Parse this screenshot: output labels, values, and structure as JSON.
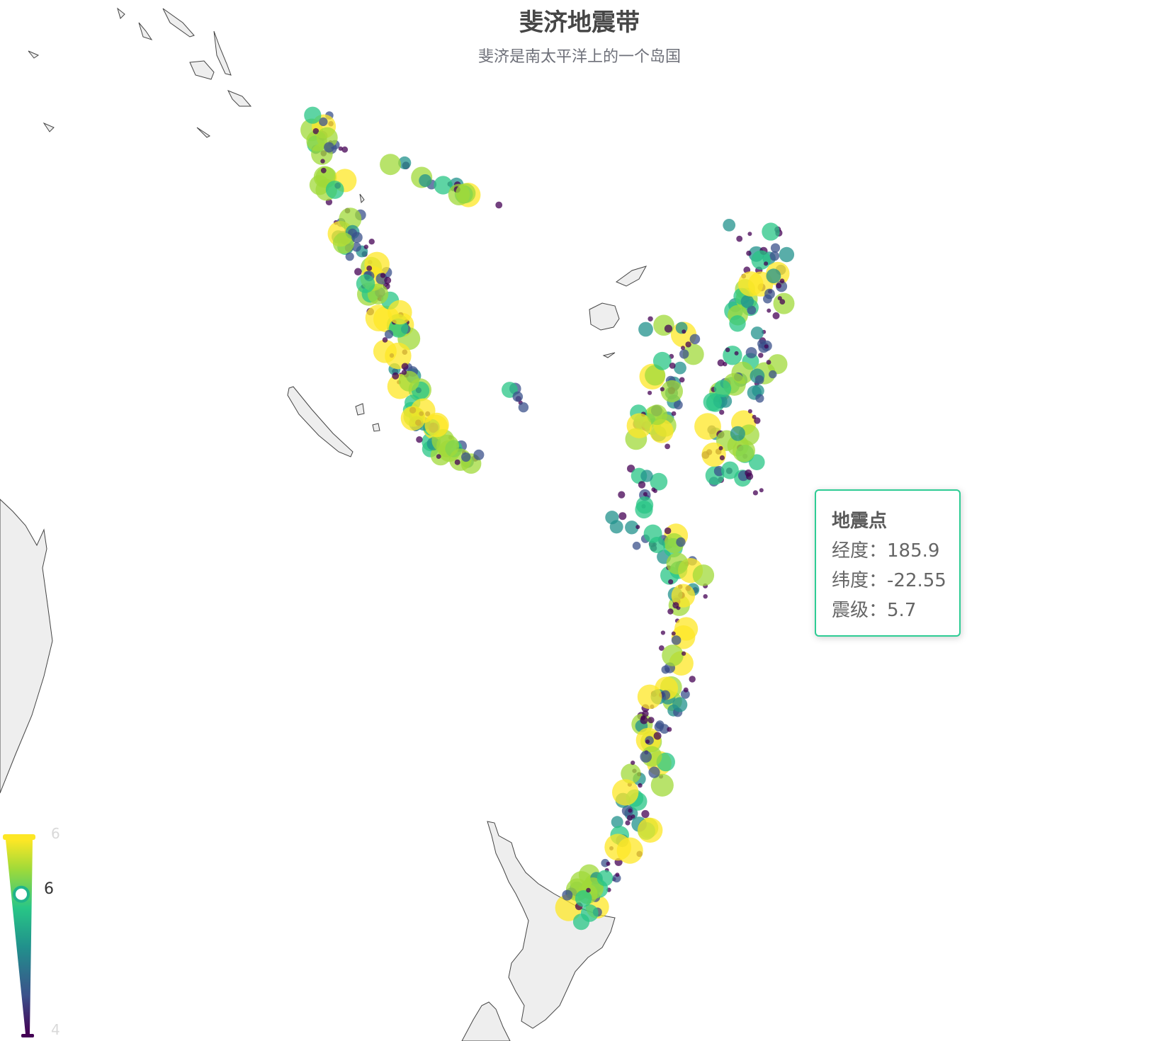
{
  "title": "斐济地震带",
  "subtitle": "斐济是南太平洋上的一个岛国",
  "tooltip": {
    "series_name": "地震点",
    "lng_label": "经度：",
    "lng_value": "185.9",
    "lat_label": "纬度：",
    "lat_value": "-22.55",
    "mag_label": "震级：",
    "mag_value": "5.7"
  },
  "visual_map": {
    "max_label": "6",
    "min_label": "4",
    "current_label": "6",
    "current_fraction": 0.72,
    "colors": [
      "#440154",
      "#3b528b",
      "#21918c",
      "#28c686",
      "#a0da39",
      "#fde725"
    ]
  },
  "map_colors": {
    "land": "#eeeeee",
    "border": "#444444"
  }
}
